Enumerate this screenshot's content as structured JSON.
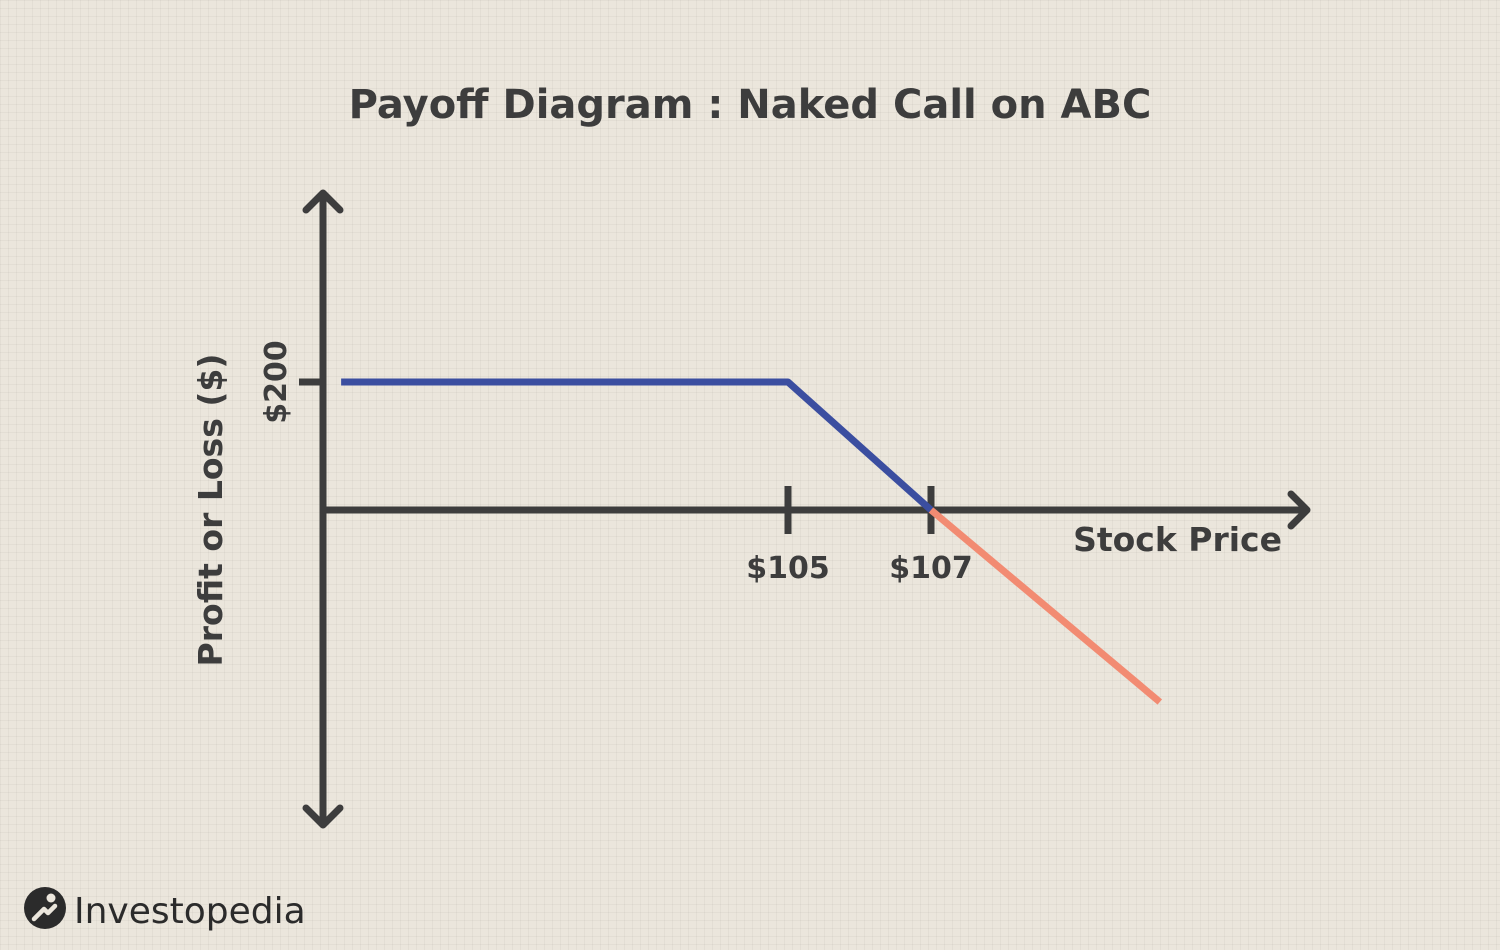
{
  "chart_data": {
    "type": "line",
    "title": "Payoff Diagram : Naked Call on ABC",
    "xlabel": "Stock Price",
    "ylabel": "Profit or Loss ($)",
    "x_ticks": [
      {
        "value": 105,
        "label": "$105"
      },
      {
        "value": 107,
        "label": "$107"
      }
    ],
    "y_ticks": [
      {
        "value": 200,
        "label": "$200"
      }
    ],
    "series": [
      {
        "color": "#3b4ea0",
        "points": [
          [
            98.75,
            200
          ],
          [
            105,
            200
          ],
          [
            107,
            0
          ]
        ]
      },
      {
        "color": "#f28b72",
        "points": [
          [
            107,
            0
          ],
          [
            110.2,
            -300
          ]
        ]
      }
    ],
    "grid": false
  },
  "brand": {
    "name": "Investopedia"
  },
  "colors": {
    "axis": "#3d3d3d",
    "profit_line": "#3b4ea0",
    "loss_line": "#f28b72",
    "background": "#ebe6dc"
  }
}
